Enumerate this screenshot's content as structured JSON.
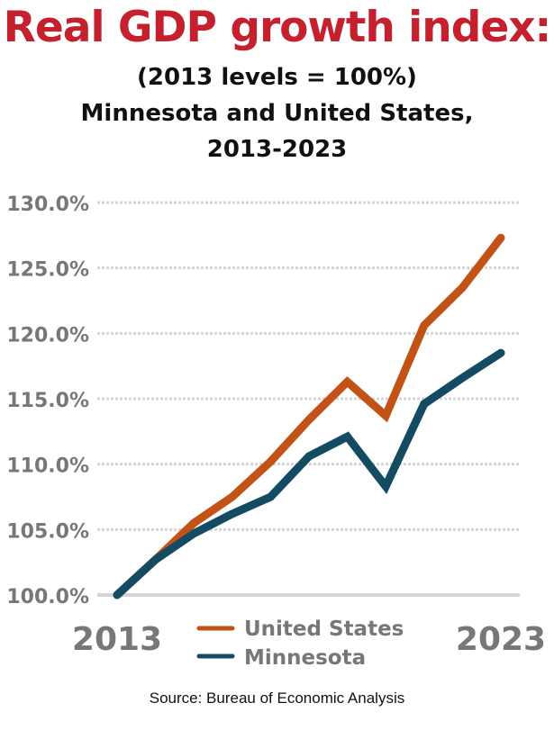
{
  "header": {
    "title": "Real GDP growth index:",
    "subtitle_line1": "(2013 levels = 100%)",
    "subtitle_line2": "Minnesota and United States,",
    "subtitle_line3": "2013-2023"
  },
  "source": "Source: Bureau of Economic Analysis",
  "colors": {
    "title": "#c4202e",
    "us": "#c25216",
    "mn": "#134b63",
    "axis_text": "#77777a",
    "grid": "#d4d4d6"
  },
  "chart_data": {
    "type": "line",
    "title": "Real GDP growth index: (2013 levels = 100%) Minnesota and United States, 2013-2023",
    "xlabel": "",
    "ylabel": "",
    "x": [
      2013,
      2014,
      2015,
      2016,
      2017,
      2018,
      2019,
      2020,
      2021,
      2022,
      2023
    ],
    "x_tick_labels": [
      "2013",
      "2023"
    ],
    "ylim": [
      100,
      130
    ],
    "y_ticks": [
      100,
      105,
      110,
      115,
      120,
      125,
      130
    ],
    "y_tick_labels": [
      "100.0%",
      "105.0%",
      "110.0%",
      "115.0%",
      "120.0%",
      "125.0%",
      "130.0%"
    ],
    "grid": true,
    "legend_position": "bottom-center",
    "series": [
      {
        "name": "United States",
        "color": "#c25216",
        "values": [
          100.0,
          102.7,
          105.5,
          107.5,
          110.2,
          113.4,
          116.3,
          113.7,
          120.6,
          123.5,
          127.3
        ]
      },
      {
        "name": "Minnesota",
        "color": "#134b63",
        "values": [
          100.0,
          102.7,
          104.7,
          106.2,
          107.5,
          110.6,
          112.1,
          108.3,
          114.6,
          116.6,
          118.5
        ]
      }
    ]
  }
}
